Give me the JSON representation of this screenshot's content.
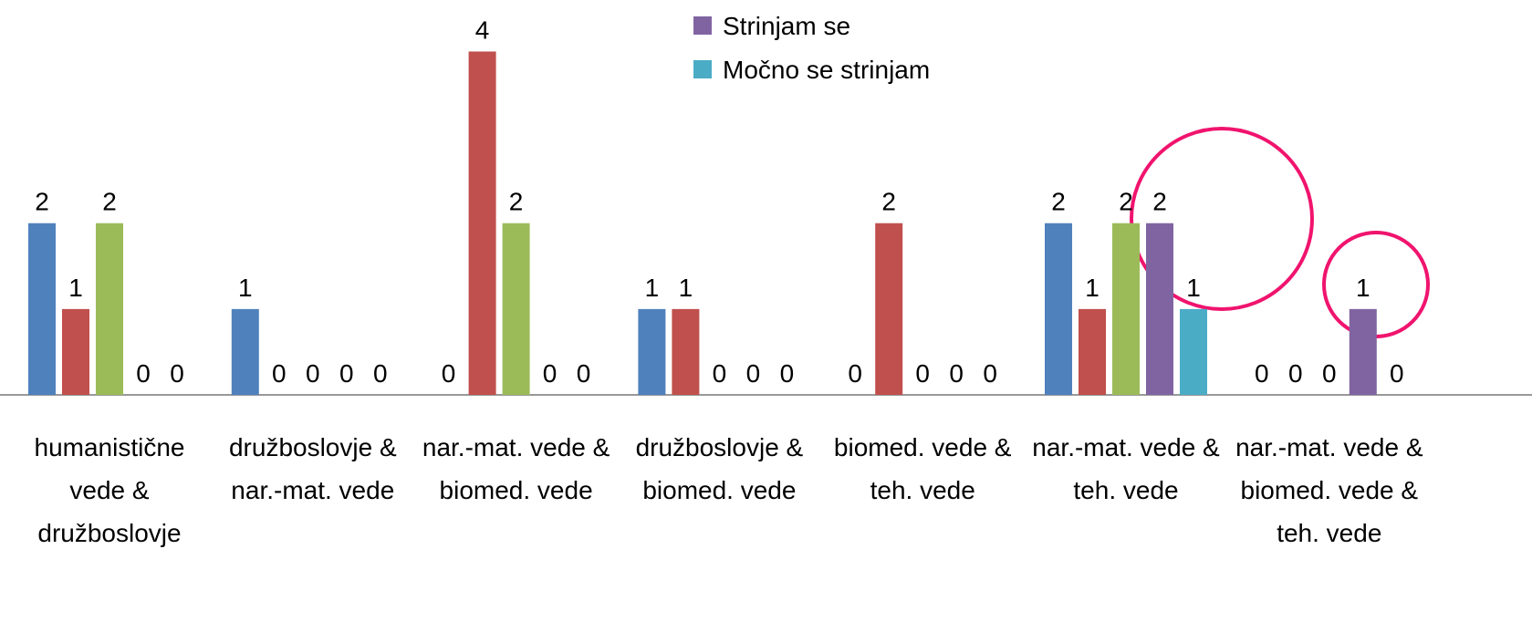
{
  "chart_data": {
    "type": "bar",
    "categories": [
      "humanistične vede & družboslovje",
      "družboslovje & nar.-mat. vede",
      "nar.-mat. vede & biomed. vede",
      "družboslovje & biomed. vede",
      "biomed. vede & teh. vede",
      "nar.-mat. vede & teh. vede",
      "nar.-mat. vede & biomed. vede & teh. vede"
    ],
    "series": [
      {
        "color": "#4f81bd",
        "values": [
          2,
          1,
          0,
          1,
          0,
          2,
          0
        ]
      },
      {
        "color": "#c0504d",
        "values": [
          1,
          0,
          4,
          1,
          2,
          1,
          0
        ]
      },
      {
        "color": "#9bbb59",
        "values": [
          2,
          0,
          2,
          0,
          0,
          2,
          0
        ]
      },
      {
        "name": "Strinjam se",
        "color": "#8064a2",
        "values": [
          0,
          0,
          0,
          0,
          0,
          2,
          1
        ]
      },
      {
        "name": "Močno se strinjam",
        "color": "#4bacc6",
        "values": [
          0,
          0,
          0,
          0,
          0,
          1,
          0
        ]
      }
    ],
    "ylim": [
      0,
      4.6
    ],
    "legend": "top"
  }
}
